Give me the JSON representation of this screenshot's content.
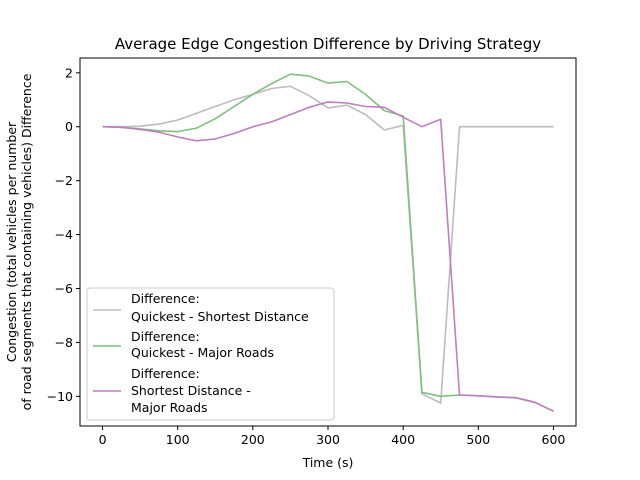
{
  "chart_data": {
    "type": "line",
    "title": "Average Edge Congestion Difference by Driving Strategy",
    "xlabel": "Time (s)",
    "ylabel_lines": [
      "Congestion (total vehicles per number",
      "of road segments that containing vehicles) Difference"
    ],
    "xlim": [
      -30,
      630
    ],
    "ylim": [
      -11.1,
      2.55
    ],
    "xticks": [
      0,
      100,
      200,
      300,
      400,
      500,
      600
    ],
    "yticks": [
      2,
      0,
      -2,
      -4,
      -6,
      -8,
      -10
    ],
    "xtick_labels": [
      "0",
      "100",
      "200",
      "300",
      "400",
      "500",
      "600"
    ],
    "ytick_labels": [
      "2",
      "0",
      "−2",
      "−4",
      "−6",
      "−8",
      "−10"
    ],
    "grid": false,
    "legend_position": "lower-left",
    "series": [
      {
        "name_lines": [
          "Difference:",
          "Quickest - Shortest Distance"
        ],
        "color": "#bdbdbd",
        "x": [
          0,
          25,
          50,
          75,
          100,
          125,
          150,
          175,
          200,
          225,
          250,
          275,
          300,
          325,
          350,
          375,
          400,
          425,
          450,
          475,
          500,
          525,
          550,
          575,
          600
        ],
        "y": [
          0.0,
          0.0,
          0.02,
          0.1,
          0.25,
          0.5,
          0.75,
          1.0,
          1.2,
          1.42,
          1.5,
          1.15,
          0.7,
          0.8,
          0.45,
          -0.12,
          0.05,
          -9.9,
          -10.25,
          0.0,
          0.0,
          0.0,
          0.0,
          0.0,
          0.0
        ]
      },
      {
        "name_lines": [
          "Difference:",
          "Quickest - Major Roads"
        ],
        "color": "#7fc07f",
        "x": [
          0,
          25,
          50,
          75,
          100,
          125,
          150,
          175,
          200,
          225,
          250,
          275,
          300,
          325,
          350,
          375,
          400,
          425,
          450,
          475,
          500,
          525,
          550,
          575,
          600
        ],
        "y": [
          0.0,
          -0.02,
          -0.08,
          -0.15,
          -0.18,
          -0.05,
          0.3,
          0.75,
          1.2,
          1.6,
          1.95,
          1.88,
          1.62,
          1.68,
          1.2,
          0.6,
          0.4,
          -9.85,
          -10.0,
          -9.95,
          -9.98,
          -10.02,
          -10.05,
          -10.22,
          -10.55
        ]
      },
      {
        "name_lines": [
          "Difference:",
          "Shortest Distance -",
          "Major Roads"
        ],
        "color": "#bf7fbf",
        "x": [
          0,
          25,
          50,
          75,
          100,
          125,
          150,
          175,
          200,
          225,
          250,
          275,
          300,
          325,
          350,
          375,
          400,
          425,
          450,
          475,
          500,
          525,
          550,
          575,
          600
        ],
        "y": [
          0.0,
          -0.02,
          -0.1,
          -0.2,
          -0.38,
          -0.52,
          -0.45,
          -0.25,
          0.0,
          0.18,
          0.45,
          0.72,
          0.92,
          0.88,
          0.75,
          0.72,
          0.35,
          0.0,
          0.28,
          -9.95,
          -9.98,
          -10.02,
          -10.05,
          -10.22,
          -10.55
        ]
      }
    ]
  }
}
